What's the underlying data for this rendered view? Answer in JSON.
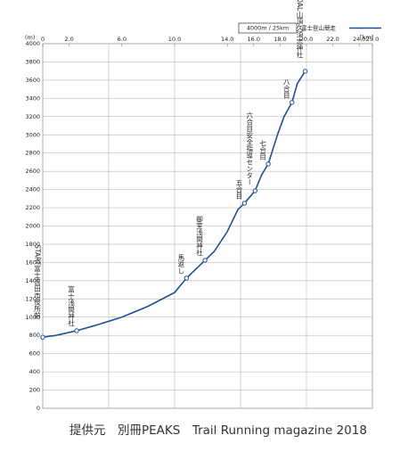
{
  "chart_data": {
    "type": "line",
    "y_unit": "(m)",
    "x_unit": "[km]",
    "legend_scale": "4000m / 25km",
    "series": [
      {
        "name": "富士登山競走",
        "color": "#1f4e96",
        "x": [
          0,
          1,
          2.57,
          4,
          6,
          8,
          10,
          10.9,
          12.3,
          13,
          14,
          14.8,
          15.3,
          16.1,
          16.6,
          17.1,
          17.8,
          18.3,
          18.9,
          19.3,
          19.9
        ],
        "values": [
          780,
          800,
          851,
          910,
          1000,
          1120,
          1270,
          1428,
          1623,
          1720,
          1940,
          2180,
          2250,
          2386,
          2560,
          2680,
          3000,
          3200,
          3355,
          3560,
          3697
        ]
      }
    ],
    "stations": [
      {
        "label": "START富士吉田市役所前",
        "km": 0,
        "elev": 780
      },
      {
        "label": "富士浅間神社",
        "km": 2.57,
        "elev": 851
      },
      {
        "label": "馬返し",
        "km": 10.9,
        "elev": 1428
      },
      {
        "label": "御室浅間神社",
        "km": 12.3,
        "elev": 1623
      },
      {
        "label": "五合目",
        "km": 15.3,
        "elev": 2250
      },
      {
        "label": "六合目安全指導センター",
        "km": 16.1,
        "elev": 2386
      },
      {
        "label": "七合目",
        "km": 17.1,
        "elev": 2680
      },
      {
        "label": "八合目",
        "km": 18.9,
        "elev": 3355
      },
      {
        "label": "GOAL山頂久須志神社",
        "km": 19.9,
        "elev": 3697
      }
    ],
    "xlim": [
      0,
      25
    ],
    "xticks": [
      0,
      {
        "value": 2,
        "label": "2.0"
      },
      {
        "value": 6,
        "label": "6.0"
      },
      {
        "value": 10,
        "label": "10.0"
      },
      {
        "value": 14,
        "label": "14.0"
      },
      {
        "value": 16,
        "label": "16.0"
      },
      {
        "value": 18,
        "label": "18.0"
      },
      {
        "value": 20,
        "label": "20.0"
      },
      {
        "value": 22,
        "label": "22.0"
      },
      {
        "value": 24,
        "label": "24.0"
      },
      {
        "value": 25,
        "label": "25.0"
      }
    ],
    "xgrid": [
      5,
      10,
      15,
      20
    ],
    "ylim": [
      0,
      4000
    ],
    "yticks": [
      0,
      200,
      400,
      600,
      800,
      1000,
      1200,
      1400,
      1600,
      1800,
      2000,
      2200,
      2400,
      2600,
      2800,
      3000,
      3200,
      3400,
      3600,
      3800,
      4000
    ],
    "grid": true
  },
  "credit": "提供元　別冊PEAKS　Trail Running magazine 2018"
}
